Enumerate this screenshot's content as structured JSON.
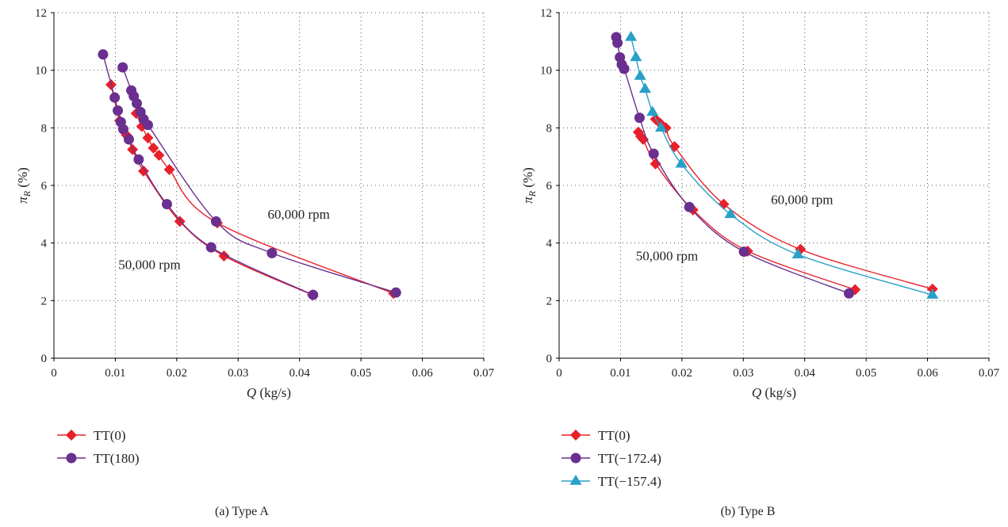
{
  "chart_data": [
    {
      "type": "line",
      "caption": "(a)  Type A",
      "xlabel_var": "Q",
      "xlabel_unit": " (kg/s)",
      "ylabel_var": "π",
      "ylabel_sub": "R",
      "ylabel_unit": " (%)",
      "xlim": [
        0,
        0.07
      ],
      "ylim": [
        0,
        12
      ],
      "xticks": [
        "0",
        "0.01",
        "0.02",
        "0.03",
        "0.04",
        "0.05",
        "0.06",
        "0.07"
      ],
      "yticks": [
        "0",
        "2",
        "4",
        "6",
        "8",
        "10",
        "12"
      ],
      "grid": true,
      "legend_position": "bottom-left (below plot)",
      "annotations": [
        {
          "text": "60,000 rpm",
          "x": 0.0348,
          "y": 4.85
        },
        {
          "text": "50,000 rpm",
          "x": 0.0105,
          "y": 3.1
        }
      ],
      "series": [
        {
          "name": "TT(0)",
          "marker": "diamond",
          "color": "#e8202a",
          "groups": [
            {
              "x": [
                0.0093,
                0.0107,
                0.0118,
                0.0128,
                0.0146,
                0.0205,
                0.0277,
                0.0421
              ],
              "y": [
                9.5,
                8.25,
                7.75,
                7.25,
                6.5,
                4.75,
                3.55,
                2.2
              ]
            },
            {
              "x": [
                0.0134,
                0.0143,
                0.0153,
                0.0162,
                0.0171,
                0.0188,
                0.0266,
                0.0553
              ],
              "y": [
                8.5,
                8.05,
                7.65,
                7.3,
                7.05,
                6.55,
                4.7,
                2.25
              ]
            }
          ]
        },
        {
          "name": "TT(180)",
          "marker": "circle",
          "color": "#6a2f8f",
          "groups": [
            {
              "x": [
                0.008,
                0.0099,
                0.0104,
                0.0109,
                0.0113,
                0.0122,
                0.0138,
                0.0184,
                0.0256,
                0.0422
              ],
              "y": [
                10.55,
                9.05,
                8.6,
                8.2,
                7.95,
                7.6,
                6.9,
                5.35,
                3.85,
                2.2
              ]
            },
            {
              "x": [
                0.0112,
                0.0126,
                0.013,
                0.0135,
                0.0141,
                0.0146,
                0.0153,
                0.0264,
                0.0355,
                0.0557
              ],
              "y": [
                10.1,
                9.3,
                9.1,
                8.85,
                8.55,
                8.3,
                8.1,
                4.75,
                3.65,
                2.28
              ]
            }
          ]
        }
      ]
    },
    {
      "type": "line",
      "caption": "(b)  Type B",
      "xlabel_var": "Q",
      "xlabel_unit": " (kg/s)",
      "ylabel_var": "π",
      "ylabel_sub": "R",
      "ylabel_unit": " (%)",
      "xlim": [
        0,
        0.07
      ],
      "ylim": [
        0,
        12
      ],
      "xticks": [
        "0",
        "0.01",
        "0.02",
        "0.03",
        "0.04",
        "0.05",
        "0.06",
        "0.07"
      ],
      "yticks": [
        "0",
        "2",
        "4",
        "6",
        "8",
        "10",
        "12"
      ],
      "grid": true,
      "legend_position": "bottom-left (below plot)",
      "annotations": [
        {
          "text": "60,000 rpm",
          "x": 0.0345,
          "y": 5.35
        },
        {
          "text": "50,000 rpm",
          "x": 0.0125,
          "y": 3.4
        }
      ],
      "series": [
        {
          "name": "TT(0)",
          "marker": "diamond",
          "color": "#e8202a",
          "groups": [
            {
              "x": [
                0.0129,
                0.0133,
                0.0137,
                0.0157,
                0.0218,
                0.0307,
                0.0482
              ],
              "y": [
                7.85,
                7.7,
                7.6,
                6.75,
                5.15,
                3.72,
                2.38
              ]
            },
            {
              "x": [
                0.0157,
                0.0165,
                0.0174,
                0.0188,
                0.0268,
                0.0393,
                0.0608
              ],
              "y": [
                8.3,
                8.15,
                8.0,
                7.35,
                5.35,
                3.78,
                2.4
              ]
            }
          ]
        },
        {
          "name": "TT(−172.4)",
          "marker": "circle",
          "color": "#6a2f8f",
          "groups": [
            {
              "x": [
                0.0093,
                0.0095,
                0.0099,
                0.0102,
                0.0106,
                0.0131,
                0.0154,
                0.0212,
                0.0301,
                0.0472
              ],
              "y": [
                11.15,
                10.95,
                10.45,
                10.2,
                10.05,
                8.35,
                7.1,
                5.25,
                3.7,
                2.25
              ]
            }
          ]
        },
        {
          "name": "TT(−157.4)",
          "marker": "triangle",
          "color": "#2aa0c8",
          "groups": [
            {
              "x": [
                0.0117,
                0.0125,
                0.0132,
                0.014,
                0.0152,
                0.0166,
                0.0199,
                0.0279,
                0.0389,
                0.0608
              ],
              "y": [
                11.15,
                10.45,
                9.8,
                9.35,
                8.55,
                8.0,
                6.75,
                5.0,
                3.6,
                2.2
              ]
            }
          ]
        }
      ]
    }
  ]
}
